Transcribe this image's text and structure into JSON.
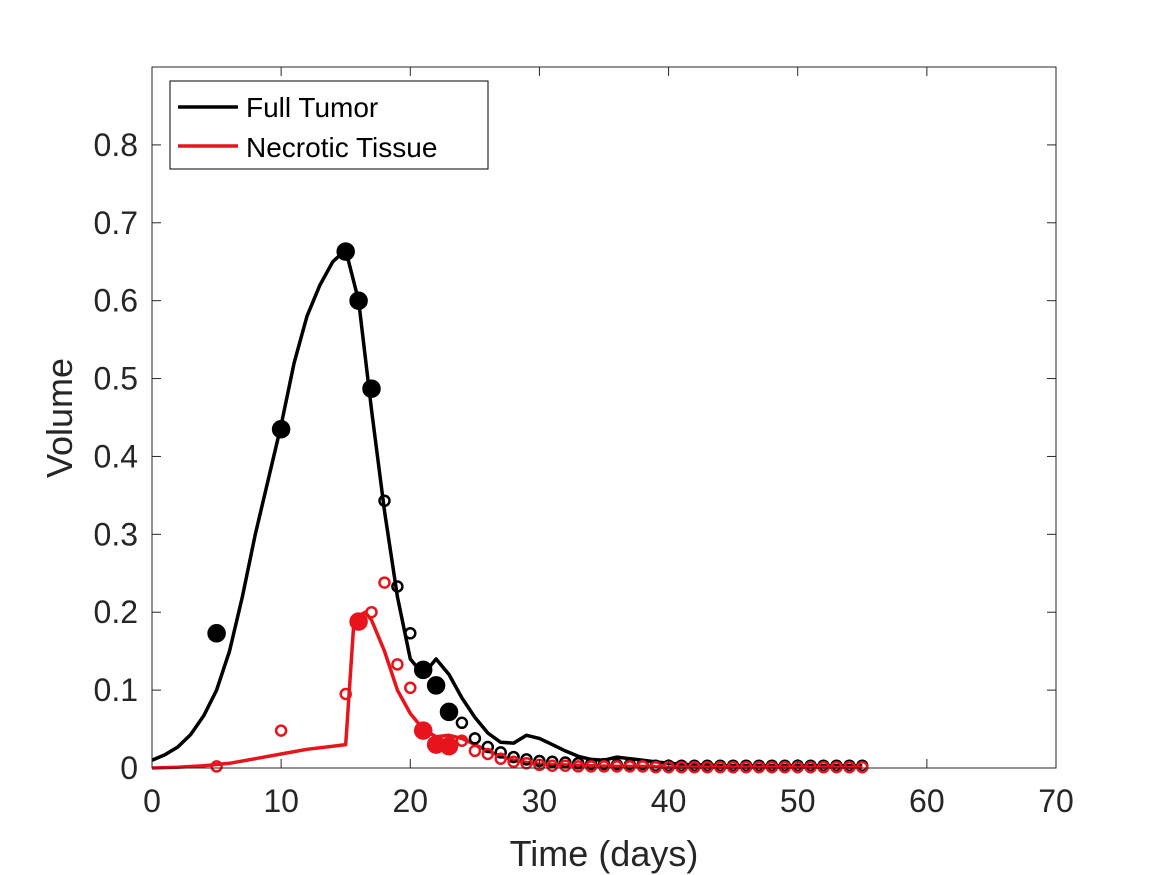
{
  "chart_data": {
    "type": "line",
    "title": "",
    "xlabel": "Time (days)",
    "ylabel": "Volume",
    "xlim": [
      0,
      70
    ],
    "ylim": [
      0,
      0.9
    ],
    "xticks": [
      0,
      10,
      20,
      30,
      40,
      50,
      60,
      70
    ],
    "yticks": [
      0,
      0.1,
      0.2,
      0.3,
      0.4,
      0.5,
      0.6,
      0.7,
      0.8
    ],
    "xtick_labels": [
      "0",
      "10",
      "20",
      "30",
      "40",
      "50",
      "60",
      "70"
    ],
    "ytick_labels": [
      "0",
      "0.1",
      "0.2",
      "0.3",
      "0.4",
      "0.5",
      "0.6",
      "0.7",
      "0.8"
    ],
    "grid": false,
    "legend_position": "top-left",
    "series": [
      {
        "name": "Full Tumor",
        "kind": "line",
        "color": "#000000",
        "x": [
          0,
          1,
          2,
          3,
          4,
          5,
          6,
          7,
          8,
          9,
          10,
          11,
          12,
          13,
          14,
          15,
          16,
          17,
          18,
          19,
          20,
          21,
          22,
          23,
          24,
          25,
          26,
          27,
          28,
          29,
          30,
          31,
          32,
          33,
          34,
          35,
          36,
          37,
          38,
          39,
          40,
          41,
          42,
          43,
          44,
          45,
          46,
          47,
          48,
          49,
          50,
          51,
          52,
          53,
          54,
          55
        ],
        "y": [
          0.01,
          0.017,
          0.027,
          0.043,
          0.067,
          0.1,
          0.15,
          0.22,
          0.3,
          0.37,
          0.44,
          0.52,
          0.58,
          0.62,
          0.65,
          0.665,
          0.6,
          0.46,
          0.33,
          0.22,
          0.14,
          0.12,
          0.14,
          0.12,
          0.09,
          0.065,
          0.045,
          0.033,
          0.032,
          0.042,
          0.038,
          0.03,
          0.022,
          0.015,
          0.011,
          0.01,
          0.014,
          0.012,
          0.01,
          0.008,
          0.006,
          0.005,
          0.004,
          0.004,
          0.003,
          0.003,
          0.003,
          0.003,
          0.003,
          0.003,
          0.003,
          0.003,
          0.003,
          0.003,
          0.003,
          0.003
        ]
      },
      {
        "name": "Necrotic Tissue",
        "kind": "line",
        "color": "#e8141c",
        "x": [
          0,
          2,
          4,
          6,
          8,
          10,
          12,
          14,
          15,
          15.6,
          16,
          16.5,
          17,
          18,
          19,
          20,
          21,
          22,
          23,
          24,
          25,
          26,
          27,
          28,
          29,
          30,
          32,
          34,
          36,
          38,
          40,
          45,
          50,
          55
        ],
        "y": [
          0,
          0.001,
          0.003,
          0.006,
          0.012,
          0.018,
          0.024,
          0.028,
          0.03,
          0.18,
          0.195,
          0.2,
          0.19,
          0.15,
          0.1,
          0.07,
          0.05,
          0.04,
          0.042,
          0.038,
          0.03,
          0.022,
          0.015,
          0.01,
          0.007,
          0.005,
          0.004,
          0.003,
          0.002,
          0.002,
          0.001,
          0.001,
          0.001,
          0.001
        ]
      },
      {
        "name": "",
        "kind": "marker",
        "filled": true,
        "color": "#000000",
        "x": [
          5,
          10,
          15,
          16,
          17,
          21,
          22,
          23
        ],
        "y": [
          0.173,
          0.435,
          0.663,
          0.6,
          0.487,
          0.126,
          0.106,
          0.072
        ]
      },
      {
        "name": "",
        "kind": "marker",
        "filled": false,
        "color": "#000000",
        "x": [
          18,
          19,
          20,
          24,
          25,
          26,
          27,
          28,
          29,
          30,
          31,
          32,
          33,
          34,
          35,
          36,
          37,
          38,
          39,
          40,
          41,
          42,
          43,
          44,
          45,
          46,
          47,
          48,
          49,
          50,
          51,
          52,
          53,
          54,
          55
        ],
        "y": [
          0.343,
          0.233,
          0.173,
          0.058,
          0.038,
          0.027,
          0.02,
          0.014,
          0.011,
          0.009,
          0.008,
          0.007,
          0.006,
          0.005,
          0.005,
          0.004,
          0.004,
          0.004,
          0.003,
          0.003,
          0.003,
          0.003,
          0.003,
          0.003,
          0.003,
          0.003,
          0.003,
          0.003,
          0.003,
          0.003,
          0.003,
          0.003,
          0.003,
          0.003,
          0.003
        ]
      },
      {
        "name": "",
        "kind": "marker",
        "filled": true,
        "color": "#e8141c",
        "x": [
          16,
          21,
          22,
          23
        ],
        "y": [
          0.188,
          0.048,
          0.03,
          0.028
        ]
      },
      {
        "name": "",
        "kind": "marker",
        "filled": false,
        "color": "#e8141c",
        "x": [
          5,
          10,
          15,
          17,
          18,
          19,
          20,
          24,
          25,
          26,
          27,
          28,
          29,
          30,
          31,
          32,
          33,
          34,
          35,
          36,
          37,
          38,
          39,
          40,
          41,
          42,
          43,
          44,
          45,
          46,
          47,
          48,
          49,
          50,
          51,
          52,
          53,
          54,
          55
        ],
        "y": [
          0.002,
          0.048,
          0.095,
          0.2,
          0.238,
          0.133,
          0.103,
          0.035,
          0.022,
          0.018,
          0.012,
          0.008,
          0.006,
          0.004,
          0.003,
          0.003,
          0.002,
          0.002,
          0.002,
          0.002,
          0.002,
          0.002,
          0.001,
          0.001,
          0.001,
          0.001,
          0.001,
          0.001,
          0.001,
          0.001,
          0.001,
          0.001,
          0.001,
          0.001,
          0.001,
          0.001,
          0.001,
          0.001,
          0.001
        ]
      }
    ]
  }
}
